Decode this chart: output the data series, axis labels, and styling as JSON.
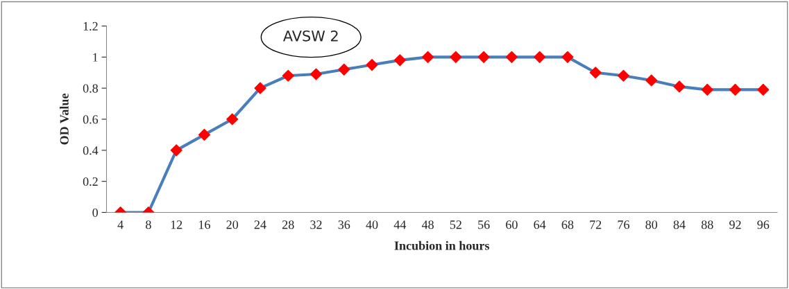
{
  "chart_data": {
    "type": "line",
    "title": "AVSW 2",
    "xlabel": "Incubion in hours",
    "ylabel": "OD Value",
    "categories": [
      "4",
      "8",
      "12",
      "16",
      "20",
      "24",
      "28",
      "32",
      "36",
      "40",
      "44",
      "48",
      "52",
      "56",
      "60",
      "64",
      "68",
      "72",
      "76",
      "80",
      "84",
      "88",
      "92",
      "96"
    ],
    "series": [
      {
        "color": "#4a7ebb",
        "colors": [
          "#ff0000",
          "#ff0000",
          "#ff0000",
          "#ff0000",
          "#ff0000",
          "#ff0000",
          "#ff0000",
          "#ff0000",
          "#ff0000",
          "#ff0000",
          "#ff0000",
          "#ff0000",
          "#ff0000",
          "#ff0000",
          "#ff0000",
          "#ff0000",
          "#ff0000",
          "#ff0000",
          "#ff0000",
          "#ff0000",
          "#ff0000",
          "#ff0000",
          "#ff0000",
          "#ff0000"
        ],
        "values": [
          0,
          0,
          0.4,
          0.5,
          0.6,
          0.8,
          0.88,
          0.89,
          0.92,
          0.95,
          0.98,
          1,
          1,
          1,
          1,
          1,
          1,
          0.9,
          0.88,
          0.85,
          0.81,
          0.79,
          0.79,
          0.79
        ]
      }
    ],
    "marker": "diamond",
    "ylim": [
      0,
      1.2
    ],
    "yticks": [
      0,
      0.2,
      0.4,
      0.6,
      0.8,
      1,
      1.2
    ],
    "grid": false,
    "legend": false
  }
}
